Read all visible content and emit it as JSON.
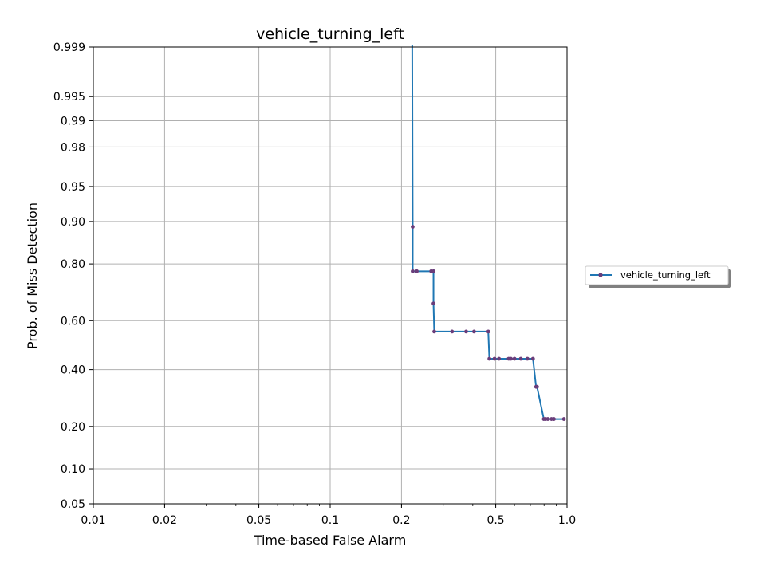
{
  "chart_data": {
    "type": "line",
    "title": "vehicle_turning_left",
    "xlabel": "Time-based False Alarm",
    "ylabel": "Prob. of Miss Detection",
    "xscale": "log",
    "yscale": "probit",
    "xlim": [
      0.01,
      1.0
    ],
    "ylim": [
      0.05,
      0.999
    ],
    "xticks": [
      0.01,
      0.02,
      0.05,
      0.1,
      0.2,
      0.5,
      1.0
    ],
    "xtick_labels": [
      "0.01",
      "0.02",
      "0.05",
      "0.1",
      "0.2",
      "0.5",
      "1.0"
    ],
    "yticks": [
      0.05,
      0.1,
      0.2,
      0.4,
      0.6,
      0.8,
      0.9,
      0.95,
      0.98,
      0.99,
      0.995,
      0.999
    ],
    "ytick_labels": [
      "0.05",
      "0.10",
      "0.20",
      "0.40",
      "0.60",
      "0.80",
      "0.90",
      "0.95",
      "0.98",
      "0.99",
      "0.995",
      "0.999"
    ],
    "grid": true,
    "legend_position": "outside-right",
    "series": [
      {
        "name": "vehicle_turning_left",
        "color": "#1f77b4",
        "marker_color": "#6a3d7a",
        "x": [
          0.222,
          0.223,
          0.223,
          0.232,
          0.267,
          0.273,
          0.273,
          0.275,
          0.327,
          0.375,
          0.405,
          0.465,
          0.47,
          0.494,
          0.516,
          0.567,
          0.579,
          0.6,
          0.638,
          0.68,
          0.718,
          0.74,
          0.747,
          0.798,
          0.812,
          0.83,
          0.86,
          0.88,
          0.97
        ],
        "y": [
          0.9995,
          0.89,
          0.778,
          0.778,
          0.778,
          0.778,
          0.667,
          0.556,
          0.556,
          0.556,
          0.556,
          0.556,
          0.444,
          0.444,
          0.444,
          0.444,
          0.444,
          0.444,
          0.444,
          0.444,
          0.444,
          0.333,
          0.333,
          0.222,
          0.222,
          0.222,
          0.222,
          0.222,
          0.222
        ]
      }
    ]
  }
}
